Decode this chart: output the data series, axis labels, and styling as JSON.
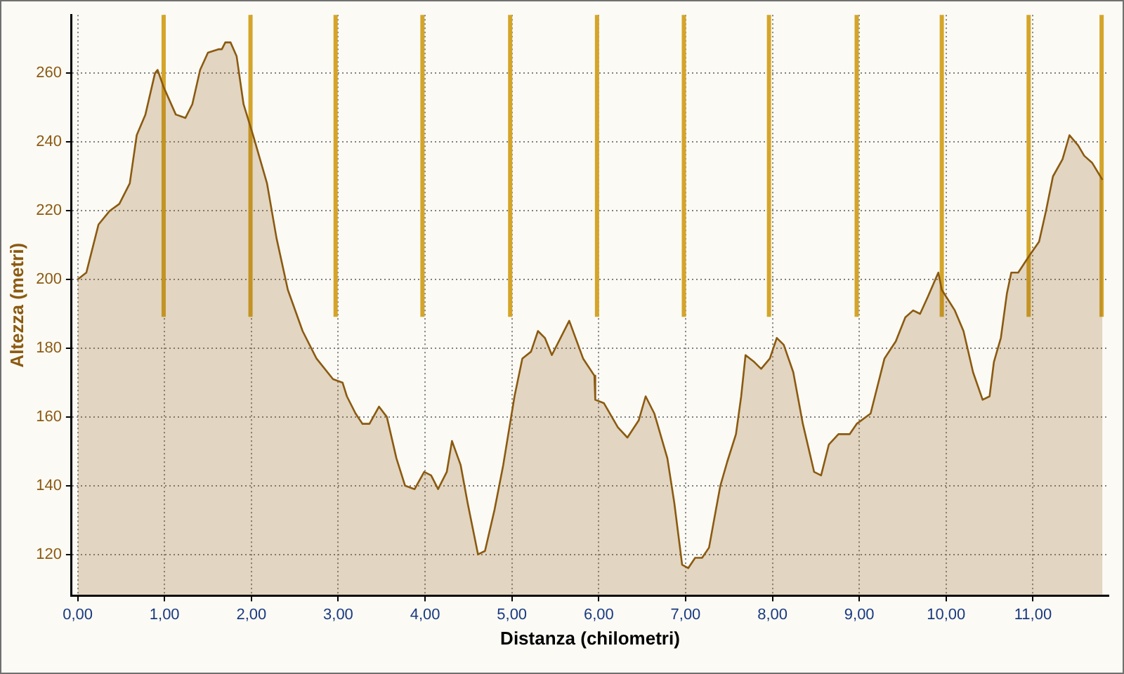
{
  "chart_data": {
    "type": "area",
    "xlabel": "Distanza (chilometri)",
    "ylabel": "Altezza (metri)",
    "x": [
      0,
      0.1,
      0.16,
      0.24,
      0.37,
      0.48,
      0.6,
      0.68,
      0.78,
      0.89,
      0.92,
      0.99,
      1.13,
      1.24,
      1.32,
      1.41,
      1.5,
      1.62,
      1.66,
      1.7,
      1.76,
      1.83,
      1.91,
      2.02,
      2.18,
      2.29,
      2.42,
      2.59,
      2.75,
      2.94,
      3.05,
      3.1,
      3.2,
      3.28,
      3.36,
      3.47,
      3.56,
      3.67,
      3.77,
      3.88,
      3.99,
      4.07,
      4.15,
      4.25,
      4.31,
      4.41,
      4.49,
      4.61,
      4.69,
      4.8,
      4.9,
      5.03,
      5.12,
      5.22,
      5.3,
      5.38,
      5.46,
      5.66,
      5.82,
      5.95,
      5.96,
      6.06,
      6.22,
      6.33,
      6.46,
      6.54,
      6.64,
      6.79,
      6.87,
      6.96,
      7.03,
      7.11,
      7.19,
      7.27,
      7.32,
      7.4,
      7.48,
      7.58,
      7.64,
      7.69,
      7.79,
      7.87,
      7.97,
      8.05,
      8.13,
      8.24,
      8.35,
      8.48,
      8.56,
      8.65,
      8.76,
      8.89,
      8.97,
      9.13,
      9.29,
      9.42,
      9.53,
      9.62,
      9.7,
      9.79,
      9.91,
      9.95,
      10.1,
      10.2,
      10.31,
      10.42,
      10.5,
      10.55,
      10.63,
      10.7,
      10.75,
      10.83,
      10.96,
      11.07,
      11.15,
      11.23,
      11.34,
      11.42,
      11.52,
      11.59,
      11.68,
      11.8
    ],
    "series": [
      {
        "color": "#8b5a10",
        "values": [
          200,
          202,
          208,
          216,
          220,
          222,
          228,
          242,
          248,
          260,
          261,
          256,
          248,
          247,
          251,
          261,
          266,
          267,
          267,
          269,
          269,
          265,
          251,
          242,
          228,
          212,
          197,
          185,
          177,
          171,
          170,
          166,
          161,
          158,
          158,
          163,
          160,
          148,
          140,
          139,
          144,
          143,
          139,
          144,
          153,
          146,
          135,
          120,
          121,
          133,
          146,
          166,
          177,
          179,
          185,
          183,
          178,
          188,
          177,
          172,
          165,
          164,
          157,
          154,
          159,
          166,
          161,
          148,
          135,
          117,
          116,
          119,
          119,
          122,
          129,
          140,
          147,
          155,
          166,
          178,
          176,
          174,
          177,
          183,
          181,
          173,
          158,
          144,
          143,
          152,
          155,
          155,
          158,
          161,
          177,
          182,
          189,
          191,
          190,
          195,
          202,
          197,
          191,
          185,
          173,
          165,
          166,
          176,
          183,
          196,
          202,
          202,
          207,
          211,
          220,
          230,
          235,
          242,
          239,
          236,
          234,
          229
        ]
      }
    ],
    "xlim": [
      -0.07,
      11.87
    ],
    "ylim": [
      108,
      277
    ],
    "xticks": [
      {
        "value": 0,
        "label": "0,00"
      },
      {
        "value": 1,
        "label": "1,00"
      },
      {
        "value": 2,
        "label": "2,00"
      },
      {
        "value": 3,
        "label": "3,00"
      },
      {
        "value": 4,
        "label": "4,00"
      },
      {
        "value": 5,
        "label": "5,00"
      },
      {
        "value": 6,
        "label": "6,00"
      },
      {
        "value": 7,
        "label": "7,00"
      },
      {
        "value": 8,
        "label": "8,00"
      },
      {
        "value": 9,
        "label": "9,00"
      },
      {
        "value": 10,
        "label": "10,00"
      },
      {
        "value": 11,
        "label": "11,00"
      }
    ],
    "yticks": [
      120,
      140,
      160,
      180,
      200,
      220,
      240,
      260
    ],
    "grid": true,
    "marker": "none",
    "line_style": "solid",
    "legend": false,
    "ref_lines": [
      {
        "axis": "x",
        "value": 0.99,
        "color": "#d4a52a"
      },
      {
        "axis": "x",
        "value": 1.99,
        "color": "#d4a52a"
      },
      {
        "axis": "x",
        "value": 2.97,
        "color": "#d4a52a"
      },
      {
        "axis": "x",
        "value": 3.97,
        "color": "#d4a52a"
      },
      {
        "axis": "x",
        "value": 4.98,
        "color": "#d4a52a"
      },
      {
        "axis": "x",
        "value": 5.98,
        "color": "#d4a52a"
      },
      {
        "axis": "x",
        "value": 6.98,
        "color": "#d4a52a"
      },
      {
        "axis": "x",
        "value": 7.96,
        "color": "#d4a52a"
      },
      {
        "axis": "x",
        "value": 8.97,
        "color": "#d4a52a"
      },
      {
        "axis": "x",
        "value": 9.95,
        "color": "#d4a52a"
      },
      {
        "axis": "x",
        "value": 10.95,
        "color": "#d4a52a"
      },
      {
        "axis": "x",
        "value": 11.79,
        "color": "#d4a52a"
      }
    ]
  }
}
